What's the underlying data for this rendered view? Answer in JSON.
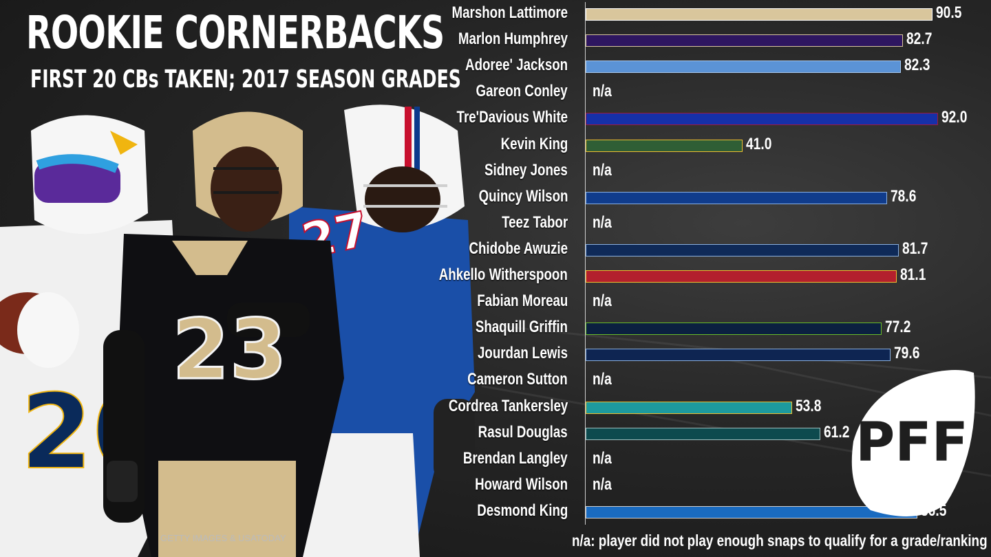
{
  "title": "ROOKIE CORNERBACKS",
  "subtitle": "FIRST 20 CBs TAKEN; 2017 SEASON GRADES",
  "photo_credit": "GETTY IMAGES & USATODAY",
  "footnote": "n/a: player did not play enough snaps to qualify for a grade/ranking",
  "logo_text": "PFF",
  "na_label": "n/a",
  "jersey_numbers": {
    "left": "20",
    "middle": "23",
    "right": "27"
  },
  "chart_data": {
    "type": "bar",
    "orientation": "horizontal",
    "title": "ROOKIE CORNERBACKS",
    "subtitle": "FIRST 20 CBs TAKEN; 2017 SEASON GRADES",
    "xlim": [
      0,
      100
    ],
    "grid": false,
    "categories": [
      "Marshon Lattimore",
      "Marlon Humphrey",
      "Adoree' Jackson",
      "Gareon Conley",
      "Tre'Davious White",
      "Kevin King",
      "Sidney Jones",
      "Quincy Wilson",
      "Teez Tabor",
      "Chidobe Awuzie",
      "Ahkello Witherspoon",
      "Fabian Moreau",
      "Shaquill Griffin",
      "Jourdan Lewis",
      "Cameron Sutton",
      "Cordrea Tankersley",
      "Rasul Douglas",
      "Brendan Langley",
      "Howard Wilson",
      "Desmond King"
    ],
    "values": [
      90.5,
      82.7,
      82.3,
      null,
      92.0,
      41.0,
      null,
      78.6,
      null,
      81.7,
      81.1,
      null,
      77.2,
      79.6,
      null,
      53.8,
      61.2,
      null,
      null,
      86.5
    ],
    "labels": [
      "90.5",
      "82.7",
      "82.3",
      "n/a",
      "92.0",
      "41.0",
      "n/a",
      "78.6",
      "n/a",
      "81.7",
      "81.1",
      "n/a",
      "77.2",
      "79.6",
      "n/a",
      "53.8",
      "61.2",
      "n/a",
      "n/a",
      "86.5"
    ],
    "colors": [
      "#d9c69c",
      "#2e1660",
      "#5b93d6",
      null,
      "#1630a8",
      "#2f5e35",
      null,
      "#103c8c",
      null,
      "#0f2a58",
      "#b3202d",
      null,
      "#0b2040",
      "#0e2552",
      null,
      "#1d9a9e",
      "#0d4a4e",
      null,
      null,
      "#1a6bc0"
    ],
    "outline_colors": [
      "#ffffff",
      "#d9c69c",
      "#a8c8ee",
      null,
      "#a01a3a",
      "#f0c030",
      null,
      "#8ab0e0",
      null,
      "#8ab0e0",
      "#f0c030",
      null,
      "#69be28",
      "#8ab0e0",
      null,
      "#f0c030",
      "#a0c0c0",
      null,
      null,
      "#d0d0d0"
    ]
  }
}
